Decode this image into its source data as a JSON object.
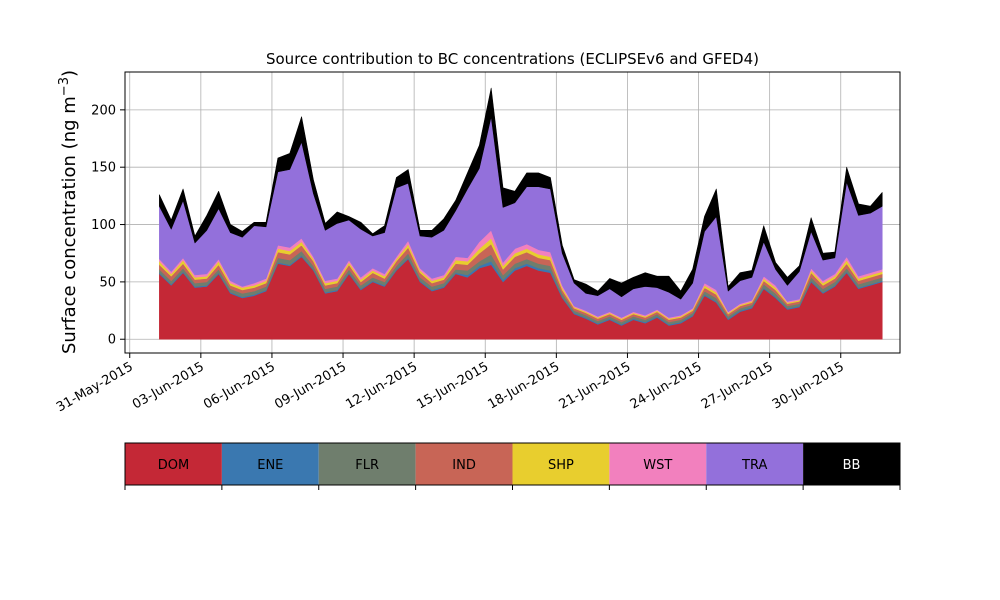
{
  "chart_data": {
    "type": "area",
    "stacked": true,
    "title": "Source contribution to BC concentrations (ECLIPSEv6 and GFED4)",
    "ylabel": "Surface concentration (ng m",
    "ylabel_sup": "−3",
    "ylabel_close": ")",
    "xlim": [
      -0.2,
      32.5
    ],
    "ylim": [
      -12,
      233
    ],
    "yticks": [
      0,
      50,
      100,
      150,
      200
    ],
    "ytick_labels": [
      "0",
      "50",
      "100",
      "150",
      "200"
    ],
    "xticks": [
      0,
      3,
      6,
      9,
      12,
      15,
      18,
      21,
      24,
      27,
      30
    ],
    "xtick_labels": [
      "31-May-2015",
      "03-Jun-2015",
      "06-Jun-2015",
      "09-Jun-2015",
      "12-Jun-2015",
      "15-Jun-2015",
      "18-Jun-2015",
      "21-Jun-2015",
      "24-Jun-2015",
      "27-Jun-2015",
      "30-Jun-2015"
    ],
    "grid": true,
    "legend_position": "below",
    "x_dates": [
      "01-Jun-2015",
      "01-Jun-2015",
      "02-Jun-2015",
      "02-Jun-2015",
      "03-Jun-2015",
      "03-Jun-2015",
      "04-Jun-2015",
      "04-Jun-2015",
      "05-Jun-2015",
      "05-Jun-2015",
      "06-Jun-2015",
      "06-Jun-2015",
      "07-Jun-2015",
      "07-Jun-2015",
      "08-Jun-2015",
      "08-Jun-2015",
      "09-Jun-2015",
      "09-Jun-2015",
      "10-Jun-2015",
      "10-Jun-2015",
      "11-Jun-2015",
      "11-Jun-2015",
      "12-Jun-2015",
      "12-Jun-2015",
      "13-Jun-2015",
      "13-Jun-2015",
      "14-Jun-2015",
      "14-Jun-2015",
      "15-Jun-2015",
      "15-Jun-2015",
      "16-Jun-2015",
      "16-Jun-2015",
      "17-Jun-2015",
      "17-Jun-2015",
      "18-Jun-2015",
      "18-Jun-2015",
      "19-Jun-2015",
      "19-Jun-2015",
      "20-Jun-2015",
      "20-Jun-2015",
      "21-Jun-2015",
      "21-Jun-2015",
      "22-Jun-2015",
      "22-Jun-2015",
      "23-Jun-2015",
      "23-Jun-2015",
      "24-Jun-2015",
      "24-Jun-2015",
      "25-Jun-2015",
      "25-Jun-2015",
      "26-Jun-2015",
      "26-Jun-2015",
      "27-Jun-2015",
      "27-Jun-2015",
      "28-Jun-2015",
      "28-Jun-2015",
      "29-Jun-2015",
      "29-Jun-2015",
      "30-Jun-2015",
      "30-Jun-2015",
      "01-Jul-2015",
      "01-Jul-2015"
    ],
    "x_hours": [
      6,
      18,
      6,
      18,
      6,
      18,
      6,
      18,
      6,
      18,
      6,
      18,
      6,
      18,
      6,
      18,
      6,
      18,
      6,
      18,
      6,
      18,
      6,
      18,
      6,
      18,
      6,
      18,
      6,
      18,
      6,
      18,
      6,
      18,
      6,
      18,
      6,
      18,
      6,
      18,
      6,
      18,
      6,
      18,
      6,
      18,
      6,
      18,
      6,
      18,
      6,
      18,
      6,
      18,
      6,
      18,
      6,
      18,
      6,
      18,
      6,
      18
    ],
    "series": [
      {
        "name": "DOM",
        "color": "#c42836",
        "values": [
          57,
          47,
          58,
          45,
          46,
          57,
          40,
          36,
          38,
          42,
          66,
          64,
          72,
          60,
          40,
          42,
          57,
          43,
          50,
          46,
          60,
          70,
          50,
          42,
          45,
          57,
          54,
          62,
          65,
          50,
          60,
          64,
          60,
          58,
          36,
          22,
          18,
          13,
          17,
          12,
          17,
          14,
          19,
          12,
          14,
          20,
          38,
          32,
          17,
          24,
          27,
          44,
          36,
          26,
          28,
          50,
          40,
          46,
          58,
          44,
          47,
          50
        ]
      },
      {
        "name": "ENE",
        "color": "#3a78b0",
        "values": [
          1,
          1,
          1,
          1,
          1,
          1,
          1,
          1,
          1,
          1,
          1,
          1,
          1,
          1,
          1,
          1,
          1,
          1,
          1,
          1,
          1,
          1,
          1,
          1,
          1,
          1,
          2,
          2,
          3,
          2,
          2,
          2,
          2,
          2,
          1,
          1,
          1,
          1,
          1,
          1,
          1,
          1,
          1,
          1,
          1,
          1,
          1,
          1,
          1,
          1,
          1,
          1,
          1,
          1,
          1,
          1,
          1,
          1,
          1,
          1,
          1,
          1
        ]
      },
      {
        "name": "FLR",
        "color": "#6f7e6d",
        "values": [
          3,
          3,
          3,
          3,
          3,
          3,
          3,
          3,
          3,
          3,
          4,
          4,
          4,
          3,
          3,
          3,
          3,
          3,
          3,
          3,
          3,
          4,
          3,
          3,
          3,
          3,
          4,
          4,
          6,
          4,
          4,
          4,
          4,
          4,
          3,
          2,
          2,
          2,
          2,
          2,
          2,
          2,
          2,
          2,
          2,
          2,
          3,
          3,
          2,
          2,
          2,
          3,
          3,
          2,
          2,
          3,
          3,
          3,
          3,
          3,
          3,
          3
        ]
      },
      {
        "name": "IND",
        "color": "#c86556",
        "values": [
          4,
          4,
          4,
          3,
          3,
          4,
          3,
          3,
          3,
          3,
          5,
          5,
          5,
          4,
          3,
          3,
          4,
          3,
          4,
          3,
          4,
          5,
          4,
          3,
          3,
          5,
          5,
          7,
          9,
          5,
          6,
          6,
          5,
          5,
          3,
          2,
          2,
          2,
          2,
          2,
          2,
          2,
          2,
          2,
          2,
          2,
          3,
          3,
          2,
          2,
          2,
          3,
          3,
          2,
          2,
          4,
          3,
          3,
          4,
          3,
          3,
          3
        ]
      },
      {
        "name": "SHP",
        "color": "#e8ce2e",
        "values": [
          3,
          2,
          3,
          2,
          2,
          3,
          2,
          2,
          2,
          2,
          3,
          3,
          3,
          2,
          2,
          2,
          2,
          2,
          2,
          2,
          2,
          3,
          2,
          2,
          2,
          3,
          3,
          4,
          5,
          3,
          3,
          3,
          3,
          3,
          2,
          1,
          1,
          1,
          1,
          1,
          1,
          1,
          1,
          1,
          1,
          1,
          2,
          2,
          1,
          1,
          1,
          2,
          2,
          1,
          1,
          2,
          2,
          2,
          3,
          2,
          2,
          2
        ]
      },
      {
        "name": "WST",
        "color": "#f280be",
        "values": [
          2,
          2,
          2,
          2,
          2,
          2,
          2,
          1,
          2,
          2,
          3,
          3,
          3,
          2,
          2,
          2,
          2,
          2,
          2,
          2,
          2,
          3,
          2,
          2,
          2,
          3,
          3,
          6,
          7,
          3,
          4,
          4,
          4,
          4,
          2,
          1,
          1,
          1,
          1,
          1,
          1,
          1,
          1,
          1,
          1,
          1,
          2,
          2,
          1,
          1,
          1,
          2,
          2,
          1,
          1,
          2,
          2,
          2,
          3,
          2,
          2,
          2
        ]
      },
      {
        "name": "TRA",
        "color": "#9370db",
        "values": [
          46,
          37,
          50,
          28,
          38,
          44,
          42,
          43,
          50,
          45,
          64,
          68,
          84,
          55,
          44,
          48,
          35,
          42,
          28,
          36,
          60,
          50,
          28,
          36,
          39,
          40,
          60,
          64,
          99,
          48,
          40,
          50,
          55,
          55,
          28,
          20,
          15,
          18,
          20,
          18,
          20,
          25,
          19,
          22,
          14,
          22,
          45,
          64,
          18,
          20,
          20,
          30,
          14,
          14,
          24,
          32,
          18,
          14,
          65,
          53,
          52,
          55
        ]
      },
      {
        "name": "BB",
        "color": "#000000",
        "values": [
          10,
          8,
          10,
          6,
          13,
          15,
          7,
          5,
          3,
          4,
          12,
          14,
          22,
          12,
          6,
          10,
          3,
          6,
          2,
          6,
          9,
          12,
          5,
          6,
          10,
          9,
          14,
          20,
          25,
          17,
          10,
          12,
          12,
          10,
          7,
          3,
          8,
          4,
          9,
          12,
          10,
          12,
          10,
          14,
          7,
          12,
          13,
          24,
          4,
          7,
          6,
          14,
          6,
          7,
          5,
          12,
          6,
          5,
          13,
          10,
          6,
          12
        ]
      }
    ]
  }
}
